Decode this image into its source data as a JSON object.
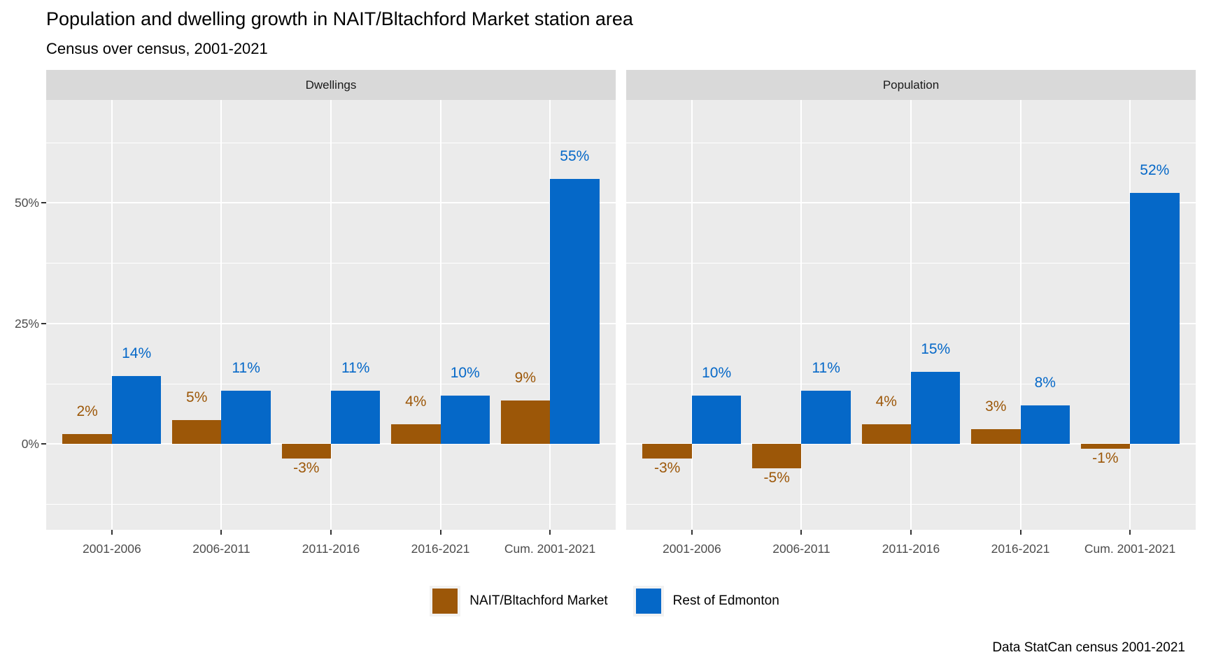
{
  "title": "Population and dwelling growth in NAIT/Bltachford Market station area",
  "subtitle": "Census over census, 2001-2021",
  "caption": "Data StatCan census 2001-2021",
  "colors": {
    "panel_bg": "#EBEBEB",
    "strip_bg": "#D9D9D9",
    "gridline": "#FFFFFF",
    "axis_text": "#4D4D4D",
    "strip_text": "#1A1A1A",
    "legend_key_bg": "#F2F2F2",
    "nait": "#9C5708",
    "rest": "#0568C8"
  },
  "legend": {
    "items": [
      {
        "key": "nait",
        "label": "NAIT/Bltachford Market",
        "color": "#9C5708"
      },
      {
        "key": "rest",
        "label": "Rest of Edmonton",
        "color": "#0568C8"
      }
    ]
  },
  "chart_data": {
    "type": "bar",
    "categories": [
      "2001-2006",
      "2006-2011",
      "2011-2016",
      "2016-2021",
      "Cum. 2001-2021"
    ],
    "y_ticks": [
      {
        "value": 0,
        "label": "0%"
      },
      {
        "value": 25,
        "label": "25%"
      },
      {
        "value": 50,
        "label": "50%"
      }
    ],
    "grid": {
      "major_h": [
        0,
        25,
        50
      ],
      "minor_h": [
        -12.5,
        12.5,
        37.5,
        62.5
      ]
    },
    "ylim": [
      -17.8,
      71.3
    ],
    "ylabel": "",
    "xlabel": "",
    "legend_position": "bottom",
    "facets": [
      {
        "label": "Dwellings",
        "series": [
          {
            "key": "nait",
            "name": "NAIT/Bltachford Market",
            "color": "#9C5708",
            "values": [
              2,
              5,
              -3,
              4,
              9
            ],
            "labels": [
              "2%",
              "5%",
              "-3%",
              "4%",
              "9%"
            ]
          },
          {
            "key": "rest",
            "name": "Rest of Edmonton",
            "color": "#0568C8",
            "values": [
              14,
              11,
              11,
              10,
              55
            ],
            "labels": [
              "14%",
              "11%",
              "11%",
              "10%",
              "55%"
            ]
          }
        ]
      },
      {
        "label": "Population",
        "series": [
          {
            "key": "nait",
            "name": "NAIT/Bltachford Market",
            "color": "#9C5708",
            "values": [
              -3,
              -5,
              4,
              3,
              -1
            ],
            "labels": [
              "-3%",
              "-5%",
              "4%",
              "3%",
              "-1%"
            ]
          },
          {
            "key": "rest",
            "name": "Rest of Edmonton",
            "color": "#0568C8",
            "values": [
              10,
              11,
              15,
              8,
              52
            ],
            "labels": [
              "10%",
              "11%",
              "15%",
              "8%",
              "52%"
            ]
          }
        ]
      }
    ]
  }
}
